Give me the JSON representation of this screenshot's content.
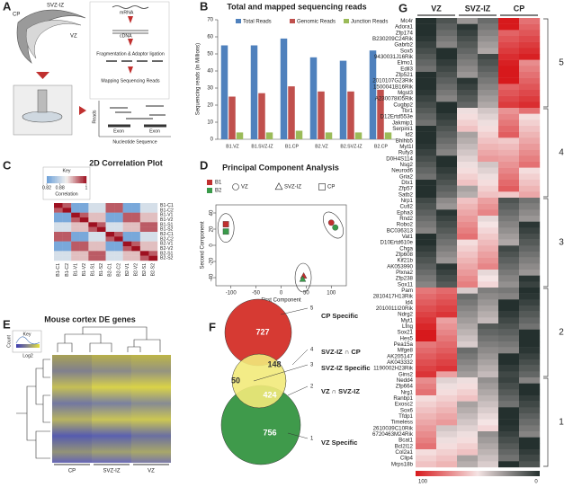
{
  "panel_labels": [
    "A",
    "B",
    "C",
    "D",
    "E",
    "F",
    "G"
  ],
  "schematic": {
    "labels": [
      "CP",
      "SVZ-IZ",
      "VZ",
      "mRNA",
      "cDNA",
      "Fragmentation & Adaptor ligation",
      "Mapping Sequencing Reads",
      "Reads",
      "Exon",
      "Exon",
      "Nucleotide Sequence"
    ]
  },
  "chart_data": [
    {
      "type": "bar",
      "title": "Total and mapped sequencing reads",
      "ylabel": "Sequencing reads (in Millions)",
      "categories": [
        "B1.VZ",
        "B1.SVZ-IZ",
        "B1.CP",
        "B2.VZ",
        "B2.SVZ-IZ",
        "B2.CP"
      ],
      "series": [
        {
          "name": "Total Reads",
          "color": "#4f81bd",
          "values": [
            55,
            55,
            59,
            48,
            46,
            52
          ]
        },
        {
          "name": "Genomic Reads",
          "color": "#c0504d",
          "values": [
            25,
            27,
            31,
            28,
            28,
            29
          ]
        },
        {
          "name": "Junction Reads",
          "color": "#9bbb59",
          "values": [
            4,
            4,
            5,
            4,
            4,
            4
          ]
        }
      ],
      "ylim": [
        0,
        70
      ],
      "yticks": [
        0,
        10,
        20,
        30,
        40,
        50,
        60,
        70
      ]
    },
    {
      "type": "heatmap",
      "title": "2D Correlation Plot",
      "labels": [
        "B1-C1",
        "B1-C2",
        "B1-V1",
        "B1-V2",
        "B1-S1",
        "B1-S2",
        "B2-C1",
        "B2-C2",
        "B2-V1",
        "B2-V2",
        "B2-S1",
        "B2-S2"
      ],
      "values": [
        [
          1,
          0.97,
          0.83,
          0.83,
          0.89,
          0.89,
          0.97,
          0.97,
          0.83,
          0.83,
          0.89,
          0.89
        ],
        [
          0.97,
          1,
          0.83,
          0.83,
          0.89,
          0.89,
          0.97,
          0.97,
          0.83,
          0.83,
          0.89,
          0.89
        ],
        [
          0.83,
          0.83,
          1,
          0.97,
          0.93,
          0.93,
          0.83,
          0.83,
          0.97,
          0.97,
          0.93,
          0.93
        ],
        [
          0.83,
          0.83,
          0.97,
          1,
          0.93,
          0.93,
          0.83,
          0.83,
          0.97,
          0.97,
          0.93,
          0.93
        ],
        [
          0.89,
          0.89,
          0.93,
          0.93,
          1,
          0.97,
          0.89,
          0.89,
          0.93,
          0.93,
          0.97,
          0.97
        ],
        [
          0.89,
          0.89,
          0.93,
          0.93,
          0.97,
          1,
          0.89,
          0.89,
          0.93,
          0.93,
          0.97,
          0.97
        ],
        [
          0.97,
          0.97,
          0.83,
          0.83,
          0.89,
          0.89,
          1,
          0.97,
          0.83,
          0.83,
          0.89,
          0.89
        ],
        [
          0.97,
          0.97,
          0.83,
          0.83,
          0.89,
          0.89,
          0.97,
          1,
          0.83,
          0.83,
          0.89,
          0.89
        ],
        [
          0.83,
          0.83,
          0.97,
          0.97,
          0.93,
          0.93,
          0.83,
          0.83,
          1,
          0.97,
          0.93,
          0.93
        ],
        [
          0.83,
          0.83,
          0.97,
          0.97,
          0.93,
          0.93,
          0.83,
          0.83,
          0.97,
          1,
          0.93,
          0.93
        ],
        [
          0.89,
          0.89,
          0.93,
          0.93,
          0.97,
          0.97,
          0.89,
          0.89,
          0.93,
          0.93,
          1,
          0.97
        ],
        [
          0.89,
          0.89,
          0.93,
          0.93,
          0.97,
          0.97,
          0.89,
          0.89,
          0.93,
          0.93,
          0.97,
          1
        ]
      ],
      "vlim": [
        0.82,
        1
      ],
      "colors": [
        "#6a9fd8",
        "#f4f1ee",
        "#9e1020"
      ],
      "colorbar": {
        "title": "Key",
        "label": "Correlation",
        "ticks": [
          0.82,
          0.88,
          1
        ]
      }
    },
    {
      "type": "scatter",
      "title": "Principal Component Analysis",
      "xlabel": "First Component",
      "ylabel": "Second Component",
      "markers": [
        {
          "name": "VZ",
          "shape": "circle"
        },
        {
          "name": "SVZ-IZ",
          "shape": "triangle"
        },
        {
          "name": "CP",
          "shape": "square"
        }
      ],
      "series": [
        {
          "name": "B1",
          "color": "#c0302f",
          "x": [
            100,
            45,
            -110
          ],
          "y": [
            28,
            -38,
            26
          ],
          "markers": [
            0,
            1,
            2
          ]
        },
        {
          "name": "B2",
          "color": "#3a9a4a",
          "x": [
            108,
            43,
            -110
          ],
          "y": [
            22,
            -42,
            17
          ],
          "markers": [
            0,
            1,
            2
          ]
        }
      ],
      "xlim": [
        -130,
        130
      ],
      "ylim": [
        -50,
        50
      ],
      "xticks": [
        -100,
        -50,
        0,
        50,
        100
      ],
      "yticks": [
        -40,
        -20,
        0,
        20,
        40
      ]
    }
  ],
  "de_heatmap": {
    "title": "Mouse cortex DE genes",
    "key": "Key",
    "key_ylabel": "Count",
    "key_xlabel": "Log2",
    "columns": [
      "CP",
      "SVZ-IZ",
      "VZ"
    ]
  },
  "venn": {
    "regions": [
      {
        "count": 727,
        "callout": "5",
        "label": "CP Specific"
      },
      {
        "count": 148,
        "callout": "4",
        "label": "SVZ-IZ ∩ CP"
      },
      {
        "count": 50,
        "callout": "3",
        "label": "SVZ-IZ Specific"
      },
      {
        "count": 424,
        "callout": "2",
        "label": "VZ ∩ SVZ-IZ"
      },
      {
        "count": 756,
        "callout": "1",
        "label": "VZ Specific"
      }
    ]
  },
  "gene_heatmap": {
    "columns": [
      "VZ",
      "SVZ-IZ",
      "CP"
    ],
    "colorbar": [
      100,
      0
    ],
    "clusters": [
      {
        "label": "5",
        "genes": [
          "Mc4r",
          "Adora1",
          "Zfp174",
          "B230209C24Rik",
          "Gabrb2",
          "Sox5",
          "9430031J16Rik",
          "Elmo1",
          "Edil3",
          "Zfp521",
          "2010107G23Rik",
          "1500041B16Rik",
          "Mgst3",
          "A230078I05Rik",
          "Cugbp2"
        ]
      },
      {
        "label": "4",
        "genes": [
          "Tbr1",
          "D12Ertd553e",
          "Jakmip1",
          "Serpini1",
          "Id2",
          "Bhlhb5",
          "Myt1l",
          "Rufy3",
          "D0H4S114",
          "Nsg2",
          "Neurod6",
          "Gria2",
          "Dtx1",
          "Zfp57",
          "Satb2"
        ]
      },
      {
        "label": "3",
        "genes": [
          "Nrp1",
          "Cutl2",
          "Epha3",
          "Rnd2",
          "Robo2",
          "BC036313",
          "Vat1",
          "D10Ertd610e",
          "Chga",
          "Zfp608",
          "Kif21b",
          "AK053990",
          "Plxna2",
          "Zfp238",
          "Sox11"
        ]
      },
      {
        "label": "2",
        "genes": [
          "Pam",
          "2810417H13Rik",
          "Id4",
          "2010011I20Rik",
          "Ndrg2",
          "Myt1",
          "Lfng",
          "Sox21",
          "Hes5",
          "Pea15a",
          "Mfge8",
          "AK205147",
          "AK043332",
          "1190002H23Rik",
          "Gins2"
        ]
      },
      {
        "label": "1",
        "genes": [
          "Nedd4",
          "Zfp664",
          "Nrg1",
          "Ranbp1",
          "Exosc2",
          "Sox6",
          "Tfdp1",
          "Timeless",
          "2610039C10Rik",
          "6720463M24Rik",
          "Bcat1",
          "Bcl2l12",
          "Col2a1",
          "Clip4",
          "Mrps18b"
        ]
      }
    ]
  }
}
